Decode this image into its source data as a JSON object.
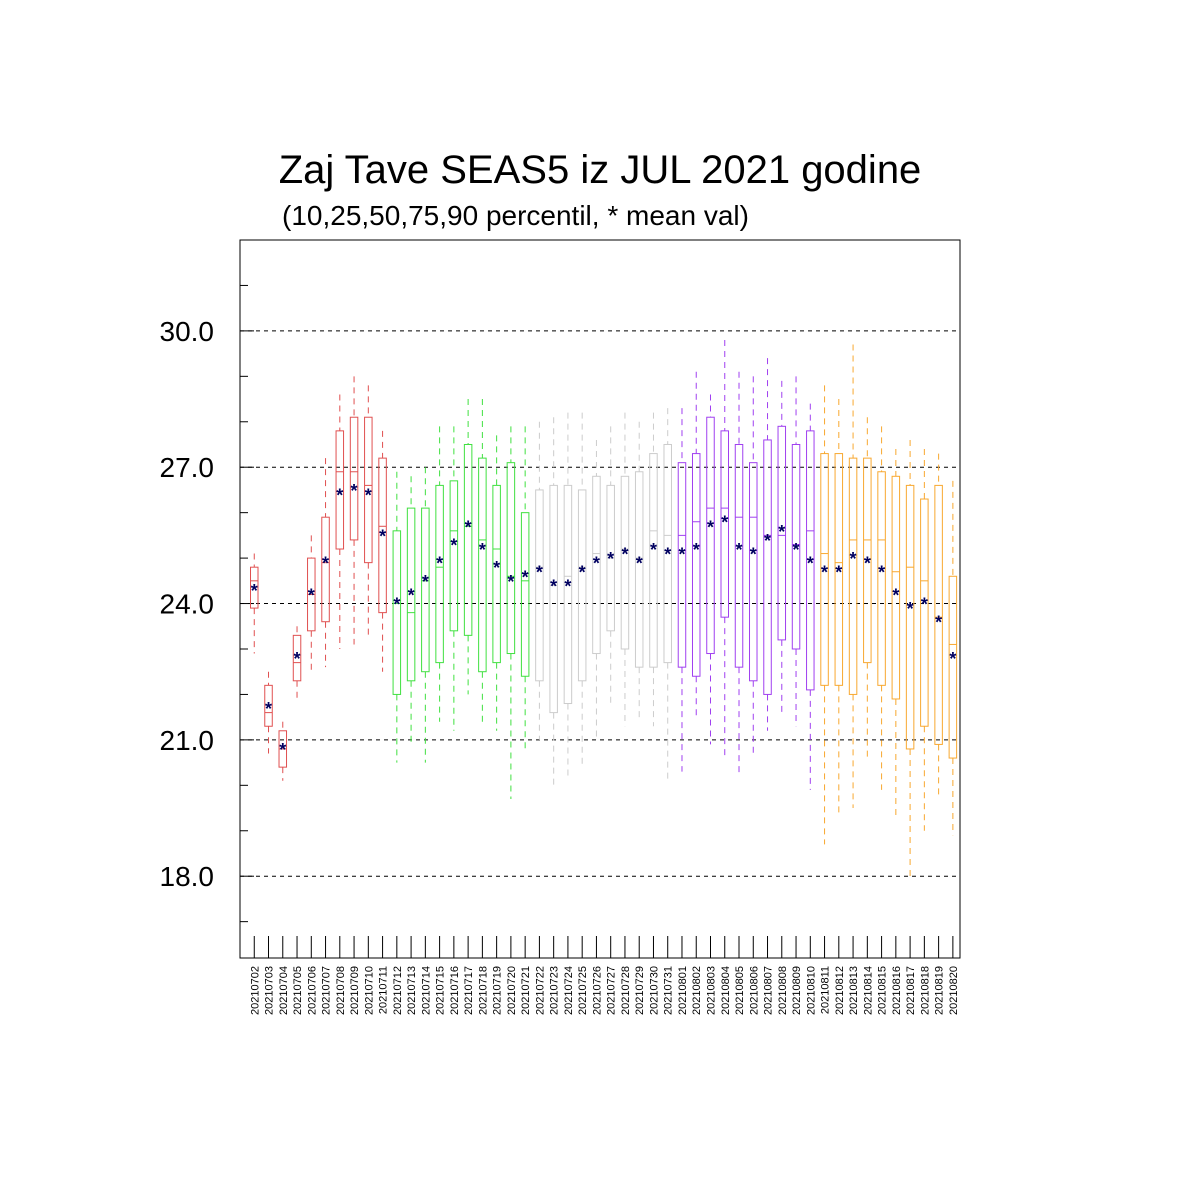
{
  "chart_data": {
    "type": "box",
    "title": "Zaj Tave SEAS5 iz JUL 2021 godine",
    "subtitle": "(10,25,50,75,90 percentil, * mean val)",
    "xlabel": "",
    "ylabel": "",
    "ylim": [
      16.2,
      32.0
    ],
    "yticks": [
      18.0,
      21.0,
      24.0,
      27.0,
      30.0
    ],
    "ytick_labels": [
      "18.0",
      "21.0",
      "24.0",
      "27.0",
      "30.0"
    ],
    "grid": "horizontal dashed at labelled ticks",
    "mean_marker": "*",
    "colors": {
      "red": "#e05050",
      "green": "#40e040",
      "gray": "#cccccc",
      "purple": "#a040f0",
      "orange": "#f8a830",
      "mean": "#000060"
    },
    "boxes": [
      {
        "date": "20210702",
        "p10": 22.9,
        "p25": 23.9,
        "p50": 24.5,
        "p75": 24.8,
        "p90": 25.1,
        "mean": 24.3,
        "color": "red"
      },
      {
        "date": "20210703",
        "p10": 20.7,
        "p25": 21.3,
        "p50": 21.6,
        "p75": 22.2,
        "p90": 22.5,
        "mean": 21.7,
        "color": "red"
      },
      {
        "date": "20210704",
        "p10": 20.1,
        "p25": 20.4,
        "p50": 20.8,
        "p75": 21.2,
        "p90": 21.4,
        "mean": 20.8,
        "color": "red"
      },
      {
        "date": "20210705",
        "p10": 21.9,
        "p25": 22.3,
        "p50": 22.7,
        "p75": 23.3,
        "p90": 23.5,
        "mean": 22.8,
        "color": "red"
      },
      {
        "date": "20210706",
        "p10": 22.5,
        "p25": 23.4,
        "p50": 24.2,
        "p75": 25.0,
        "p90": 25.5,
        "mean": 24.2,
        "color": "red"
      },
      {
        "date": "20210707",
        "p10": 22.6,
        "p25": 23.6,
        "p50": 24.9,
        "p75": 25.9,
        "p90": 27.2,
        "mean": 24.9,
        "color": "red"
      },
      {
        "date": "20210708",
        "p10": 23.0,
        "p25": 25.2,
        "p50": 26.9,
        "p75": 27.8,
        "p90": 28.6,
        "mean": 26.4,
        "color": "red"
      },
      {
        "date": "20210709",
        "p10": 23.1,
        "p25": 25.4,
        "p50": 26.9,
        "p75": 28.1,
        "p90": 29.0,
        "mean": 26.5,
        "color": "red"
      },
      {
        "date": "20210710",
        "p10": 23.3,
        "p25": 24.9,
        "p50": 26.6,
        "p75": 28.1,
        "p90": 28.8,
        "mean": 26.4,
        "color": "red"
      },
      {
        "date": "20210711",
        "p10": 22.5,
        "p25": 23.8,
        "p50": 25.7,
        "p75": 27.2,
        "p90": 27.8,
        "mean": 25.5,
        "color": "red"
      },
      {
        "date": "20210712",
        "p10": 20.5,
        "p25": 22.0,
        "p50": 24.0,
        "p75": 25.6,
        "p90": 26.9,
        "mean": 24.0,
        "color": "green"
      },
      {
        "date": "20210713",
        "p10": 20.9,
        "p25": 22.3,
        "p50": 23.8,
        "p75": 26.1,
        "p90": 26.8,
        "mean": 24.2,
        "color": "green"
      },
      {
        "date": "20210714",
        "p10": 20.5,
        "p25": 22.5,
        "p50": 24.5,
        "p75": 26.1,
        "p90": 27.0,
        "mean": 24.5,
        "color": "green"
      },
      {
        "date": "20210715",
        "p10": 21.4,
        "p25": 22.7,
        "p50": 24.8,
        "p75": 26.6,
        "p90": 27.9,
        "mean": 24.9,
        "color": "green"
      },
      {
        "date": "20210716",
        "p10": 21.2,
        "p25": 23.4,
        "p50": 25.6,
        "p75": 26.7,
        "p90": 27.9,
        "mean": 25.3,
        "color": "green"
      },
      {
        "date": "20210717",
        "p10": 22.0,
        "p25": 23.3,
        "p50": 25.7,
        "p75": 27.5,
        "p90": 28.5,
        "mean": 25.7,
        "color": "green"
      },
      {
        "date": "20210718",
        "p10": 21.4,
        "p25": 22.5,
        "p50": 25.4,
        "p75": 27.2,
        "p90": 28.5,
        "mean": 25.2,
        "color": "green"
      },
      {
        "date": "20210719",
        "p10": 21.2,
        "p25": 22.7,
        "p50": 25.2,
        "p75": 26.6,
        "p90": 27.7,
        "mean": 24.8,
        "color": "green"
      },
      {
        "date": "20210720",
        "p10": 19.7,
        "p25": 22.9,
        "p50": 24.6,
        "p75": 27.1,
        "p90": 27.9,
        "mean": 24.5,
        "color": "green"
      },
      {
        "date": "20210721",
        "p10": 20.8,
        "p25": 22.4,
        "p50": 24.5,
        "p75": 26.0,
        "p90": 27.9,
        "mean": 24.6,
        "color": "green"
      },
      {
        "date": "20210722",
        "p10": 21.0,
        "p25": 22.3,
        "p50": 24.8,
        "p75": 26.5,
        "p90": 28.0,
        "mean": 24.7,
        "color": "gray"
      },
      {
        "date": "20210723",
        "p10": 20.0,
        "p25": 21.6,
        "p50": 24.4,
        "p75": 26.6,
        "p90": 28.1,
        "mean": 24.4,
        "color": "gray"
      },
      {
        "date": "20210724",
        "p10": 20.2,
        "p25": 21.8,
        "p50": 24.6,
        "p75": 26.6,
        "p90": 28.2,
        "mean": 24.4,
        "color": "gray"
      },
      {
        "date": "20210725",
        "p10": 20.4,
        "p25": 22.3,
        "p50": 24.8,
        "p75": 26.5,
        "p90": 28.2,
        "mean": 24.7,
        "color": "gray"
      },
      {
        "date": "20210726",
        "p10": 21.0,
        "p25": 22.9,
        "p50": 25.1,
        "p75": 26.8,
        "p90": 27.6,
        "mean": 24.9,
        "color": "gray"
      },
      {
        "date": "20210727",
        "p10": 21.8,
        "p25": 23.4,
        "p50": 25.0,
        "p75": 26.6,
        "p90": 27.9,
        "mean": 25.0,
        "color": "gray"
      },
      {
        "date": "20210728",
        "p10": 21.3,
        "p25": 23.0,
        "p50": 25.2,
        "p75": 26.8,
        "p90": 28.2,
        "mean": 25.1,
        "color": "gray"
      },
      {
        "date": "20210729",
        "p10": 21.4,
        "p25": 22.6,
        "p50": 25.0,
        "p75": 26.9,
        "p90": 28.0,
        "mean": 24.9,
        "color": "gray"
      },
      {
        "date": "20210730",
        "p10": 21.3,
        "p25": 22.6,
        "p50": 25.6,
        "p75": 27.3,
        "p90": 28.2,
        "mean": 25.2,
        "color": "gray"
      },
      {
        "date": "20210731",
        "p10": 20.1,
        "p25": 22.7,
        "p50": 25.5,
        "p75": 27.5,
        "p90": 28.3,
        "mean": 25.1,
        "color": "gray"
      },
      {
        "date": "20210801",
        "p10": 20.3,
        "p25": 22.6,
        "p50": 25.5,
        "p75": 27.1,
        "p90": 28.3,
        "mean": 25.1,
        "color": "purple"
      },
      {
        "date": "20210802",
        "p10": 21.5,
        "p25": 22.4,
        "p50": 25.8,
        "p75": 27.3,
        "p90": 29.1,
        "mean": 25.2,
        "color": "purple"
      },
      {
        "date": "20210803",
        "p10": 20.9,
        "p25": 22.9,
        "p50": 26.1,
        "p75": 28.1,
        "p90": 28.6,
        "mean": 25.7,
        "color": "purple"
      },
      {
        "date": "20210804",
        "p10": 20.6,
        "p25": 23.7,
        "p50": 26.1,
        "p75": 27.8,
        "p90": 29.8,
        "mean": 25.8,
        "color": "purple"
      },
      {
        "date": "20210805",
        "p10": 20.2,
        "p25": 22.6,
        "p50": 25.9,
        "p75": 27.5,
        "p90": 29.1,
        "mean": 25.2,
        "color": "purple"
      },
      {
        "date": "20210806",
        "p10": 20.7,
        "p25": 22.3,
        "p50": 25.9,
        "p75": 27.1,
        "p90": 29.0,
        "mean": 25.1,
        "color": "purple"
      },
      {
        "date": "20210807",
        "p10": 21.2,
        "p25": 22.0,
        "p50": 25.5,
        "p75": 27.6,
        "p90": 29.4,
        "mean": 25.4,
        "color": "purple"
      },
      {
        "date": "20210808",
        "p10": 21.6,
        "p25": 23.2,
        "p50": 25.5,
        "p75": 27.9,
        "p90": 28.9,
        "mean": 25.6,
        "color": "purple"
      },
      {
        "date": "20210809",
        "p10": 21.3,
        "p25": 23.0,
        "p50": 25.3,
        "p75": 27.5,
        "p90": 29.0,
        "mean": 25.2,
        "color": "purple"
      },
      {
        "date": "20210810",
        "p10": 19.9,
        "p25": 22.1,
        "p50": 25.6,
        "p75": 27.8,
        "p90": 28.4,
        "mean": 24.9,
        "color": "purple"
      },
      {
        "date": "20210811",
        "p10": 18.7,
        "p25": 22.2,
        "p50": 25.1,
        "p75": 27.3,
        "p90": 28.8,
        "mean": 24.7,
        "color": "orange"
      },
      {
        "date": "20210812",
        "p10": 19.4,
        "p25": 22.2,
        "p50": 24.9,
        "p75": 27.3,
        "p90": 28.5,
        "mean": 24.7,
        "color": "orange"
      },
      {
        "date": "20210813",
        "p10": 19.5,
        "p25": 22.0,
        "p50": 25.4,
        "p75": 27.2,
        "p90": 29.7,
        "mean": 25.0,
        "color": "orange"
      },
      {
        "date": "20210814",
        "p10": 20.6,
        "p25": 22.7,
        "p50": 25.4,
        "p75": 27.2,
        "p90": 28.1,
        "mean": 24.9,
        "color": "orange"
      },
      {
        "date": "20210815",
        "p10": 19.9,
        "p25": 22.2,
        "p50": 25.4,
        "p75": 26.9,
        "p90": 27.9,
        "mean": 24.7,
        "color": "orange"
      },
      {
        "date": "20210816",
        "p10": 19.3,
        "p25": 21.9,
        "p50": 24.7,
        "p75": 26.8,
        "p90": 27.4,
        "mean": 24.2,
        "color": "orange"
      },
      {
        "date": "20210817",
        "p10": 17.9,
        "p25": 20.8,
        "p50": 24.8,
        "p75": 26.6,
        "p90": 27.6,
        "mean": 23.9,
        "color": "orange"
      },
      {
        "date": "20210818",
        "p10": 19.0,
        "p25": 21.3,
        "p50": 24.5,
        "p75": 26.3,
        "p90": 27.4,
        "mean": 24.0,
        "color": "orange"
      },
      {
        "date": "20210819",
        "p10": 19.8,
        "p25": 20.9,
        "p50": 23.7,
        "p75": 26.6,
        "p90": 27.3,
        "mean": 23.6,
        "color": "orange"
      },
      {
        "date": "20210820",
        "p10": 18.9,
        "p25": 20.6,
        "p50": 23.1,
        "p75": 24.6,
        "p90": 26.7,
        "mean": 22.8,
        "color": "orange"
      }
    ]
  }
}
